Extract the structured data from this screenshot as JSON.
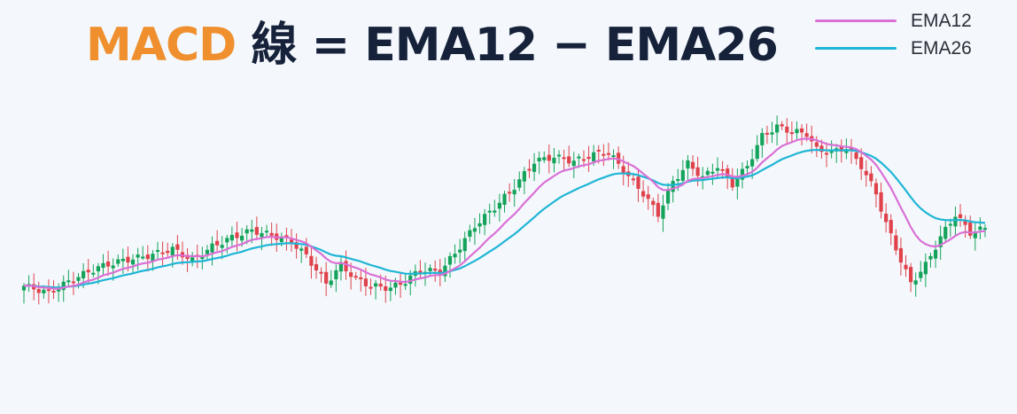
{
  "title": {
    "part1": "MACD",
    "part2": "線",
    "part3": "= EMA12 − EMA26"
  },
  "legend": [
    {
      "label": "EMA12",
      "color": "#da70d6"
    },
    {
      "label": "EMA26",
      "color": "#1fb5d6"
    }
  ],
  "colors": {
    "up": "#14a35a",
    "down": "#e0424b",
    "background": "#f4f8fc"
  },
  "chart_data": {
    "type": "candlestick",
    "ylim": [
      0,
      100
    ],
    "grid": false,
    "legend_position": "top-right",
    "series": [
      {
        "name": "EMA12",
        "color": "#da70d6"
      },
      {
        "name": "EMA26",
        "color": "#1fb5d6"
      }
    ],
    "keypoints": [
      [
        0,
        26
      ],
      [
        5,
        23
      ],
      [
        10,
        29
      ],
      [
        15,
        34
      ],
      [
        20,
        37
      ],
      [
        25,
        39
      ],
      [
        30,
        42
      ],
      [
        34,
        37
      ],
      [
        38,
        43
      ],
      [
        42,
        47
      ],
      [
        46,
        50
      ],
      [
        50,
        48
      ],
      [
        54,
        45
      ],
      [
        57,
        39
      ],
      [
        61,
        27
      ],
      [
        64,
        35
      ],
      [
        67,
        29
      ],
      [
        70,
        26
      ],
      [
        74,
        25
      ],
      [
        77,
        28
      ],
      [
        80,
        33
      ],
      [
        84,
        32
      ],
      [
        88,
        43
      ],
      [
        91,
        52
      ],
      [
        95,
        60
      ],
      [
        99,
        69
      ],
      [
        103,
        80
      ],
      [
        107,
        82
      ],
      [
        111,
        80
      ],
      [
        115,
        83
      ],
      [
        118,
        84
      ],
      [
        121,
        76
      ],
      [
        125,
        66
      ],
      [
        128,
        57
      ],
      [
        131,
        71
      ],
      [
        134,
        79
      ],
      [
        137,
        73
      ],
      [
        140,
        78
      ],
      [
        143,
        70
      ],
      [
        146,
        78
      ],
      [
        149,
        91
      ],
      [
        152,
        95
      ],
      [
        155,
        93
      ],
      [
        158,
        92
      ],
      [
        160,
        85
      ],
      [
        163,
        84
      ],
      [
        166,
        86
      ],
      [
        169,
        78
      ],
      [
        172,
        66
      ],
      [
        174,
        53
      ],
      [
        177,
        37
      ],
      [
        179,
        27
      ],
      [
        182,
        35
      ],
      [
        185,
        47
      ],
      [
        188,
        57
      ],
      [
        191,
        49
      ],
      [
        194,
        51
      ]
    ]
  }
}
